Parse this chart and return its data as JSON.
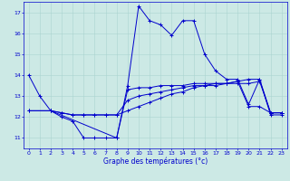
{
  "title": "",
  "xlabel": "Graphe des températures (°c)",
  "background_color": "#cce9e5",
  "line_color": "#0000cc",
  "grid_color": "#aad4d0",
  "x_ticks": [
    0,
    1,
    2,
    3,
    4,
    5,
    6,
    7,
    8,
    9,
    10,
    11,
    12,
    13,
    14,
    15,
    16,
    17,
    18,
    19,
    20,
    21,
    22,
    23
  ],
  "y_ticks": [
    11,
    12,
    13,
    14,
    15,
    16,
    17
  ],
  "xlim": [
    -0.5,
    23.5
  ],
  "ylim": [
    10.5,
    17.5
  ],
  "line1_x": [
    0,
    1,
    2,
    3,
    4,
    5,
    6,
    7,
    8,
    9,
    10,
    11,
    12,
    13,
    14,
    15,
    16,
    17,
    18,
    19,
    20,
    21,
    22,
    23
  ],
  "line1_y": [
    14.0,
    13.0,
    12.3,
    12.0,
    11.8,
    11.0,
    11.0,
    11.0,
    11.0,
    13.5,
    17.3,
    16.6,
    16.4,
    15.9,
    16.6,
    16.6,
    15.0,
    14.2,
    13.8,
    13.8,
    12.6,
    13.8,
    12.1,
    12.1
  ],
  "line2_x": [
    0,
    2,
    3,
    4,
    5,
    6,
    7,
    8,
    9,
    10,
    11,
    12,
    13,
    14,
    15,
    16,
    17,
    18,
    19,
    20,
    21,
    22,
    23
  ],
  "line2_y": [
    12.3,
    12.3,
    12.2,
    12.1,
    12.1,
    12.1,
    12.1,
    12.1,
    12.3,
    12.5,
    12.7,
    12.9,
    13.1,
    13.2,
    13.4,
    13.5,
    13.5,
    13.6,
    13.7,
    13.8,
    13.8,
    12.2,
    12.2
  ],
  "line3_x": [
    0,
    2,
    3,
    4,
    5,
    6,
    7,
    8,
    9,
    10,
    11,
    12,
    13,
    14,
    15,
    16,
    17,
    18,
    19,
    20,
    21,
    22,
    23
  ],
  "line3_y": [
    12.3,
    12.3,
    12.2,
    12.1,
    12.1,
    12.1,
    12.1,
    12.1,
    12.8,
    13.0,
    13.1,
    13.2,
    13.3,
    13.4,
    13.5,
    13.5,
    13.6,
    13.6,
    13.7,
    12.5,
    12.5,
    12.2,
    12.2
  ],
  "line4_x": [
    2,
    8,
    9,
    10,
    11,
    12,
    13,
    14,
    15,
    16,
    17,
    18,
    19,
    20,
    21,
    22,
    23
  ],
  "line4_y": [
    12.3,
    11.0,
    13.3,
    13.4,
    13.4,
    13.5,
    13.5,
    13.5,
    13.6,
    13.6,
    13.6,
    13.6,
    13.6,
    13.6,
    13.7,
    12.2,
    12.2
  ],
  "lw": 0.7,
  "ms": 2.5,
  "tick_fontsize": 4.5,
  "xlabel_fontsize": 5.5
}
